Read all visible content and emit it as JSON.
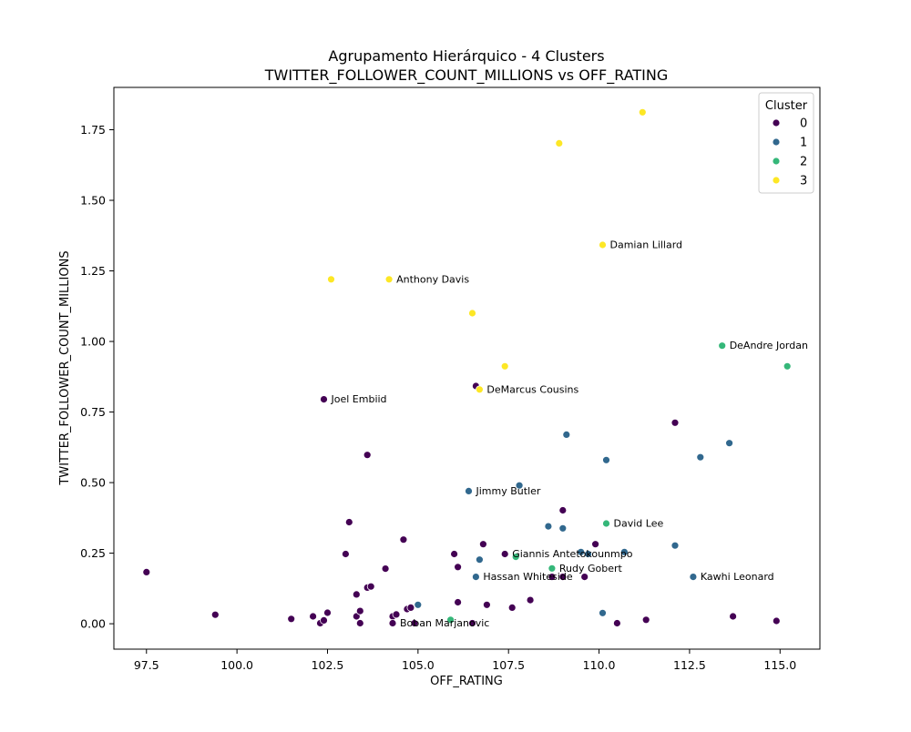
{
  "chart_data": {
    "type": "scatter",
    "title": "Agrupamento Hierárquico - 4 Clusters",
    "subtitle": "TWITTER_FOLLOWER_COUNT_MILLIONS vs OFF_RATING",
    "xlabel": "OFF_RATING",
    "ylabel": "TWITTER_FOLLOWER_COUNT_MILLIONS",
    "xlim": [
      96.6,
      116.1
    ],
    "ylim": [
      -0.09,
      1.9
    ],
    "xticks": [
      "97.5",
      "100.0",
      "102.5",
      "105.0",
      "107.5",
      "110.0",
      "112.5",
      "115.0"
    ],
    "yticks": [
      "0.00",
      "0.25",
      "0.50",
      "0.75",
      "1.00",
      "1.25",
      "1.50",
      "1.75"
    ],
    "grid": false,
    "legend": {
      "title": "Cluster",
      "placement": "top-right"
    },
    "colors": {
      "0": "#440154",
      "1": "#31688e",
      "2": "#35b779",
      "3": "#fde725"
    },
    "series": [
      {
        "name": "0",
        "points": [
          [
            97.5,
            0.183
          ],
          [
            99.4,
            0.032
          ],
          [
            101.5,
            0.017
          ],
          [
            102.1,
            0.026
          ],
          [
            102.3,
            0.002
          ],
          [
            102.4,
            0.012
          ],
          [
            102.5,
            0.039
          ],
          [
            102.4,
            0.795
          ],
          [
            103.0,
            0.247
          ],
          [
            103.1,
            0.36
          ],
          [
            103.3,
            0.104
          ],
          [
            103.3,
            0.026
          ],
          [
            103.4,
            0.045
          ],
          [
            103.4,
            0.002
          ],
          [
            103.6,
            0.128
          ],
          [
            103.7,
            0.132
          ],
          [
            103.6,
            0.598
          ],
          [
            104.1,
            0.195
          ],
          [
            104.3,
            0.026
          ],
          [
            104.3,
            0.002
          ],
          [
            104.4,
            0.033
          ],
          [
            104.6,
            0.298
          ],
          [
            104.7,
            0.052
          ],
          [
            104.8,
            0.057
          ],
          [
            104.9,
            0.002
          ],
          [
            106.0,
            0.247
          ],
          [
            106.1,
            0.201
          ],
          [
            106.1,
            0.076
          ],
          [
            106.5,
            0.002
          ],
          [
            106.6,
            0.842
          ],
          [
            106.8,
            0.282
          ],
          [
            106.9,
            0.067
          ],
          [
            107.4,
            0.247
          ],
          [
            107.6,
            0.057
          ],
          [
            108.1,
            0.084
          ],
          [
            108.7,
            0.166
          ],
          [
            109.0,
            0.402
          ],
          [
            109.0,
            0.166
          ],
          [
            109.6,
            0.166
          ],
          [
            109.9,
            0.282
          ],
          [
            110.5,
            0.002
          ],
          [
            111.3,
            0.014
          ],
          [
            112.1,
            0.712
          ],
          [
            113.7,
            0.026
          ],
          [
            114.9,
            0.01
          ]
        ]
      },
      {
        "name": "1",
        "points": [
          [
            105.0,
            0.067
          ],
          [
            106.4,
            0.47
          ],
          [
            106.6,
            0.166
          ],
          [
            106.7,
            0.227
          ],
          [
            107.8,
            0.49
          ],
          [
            108.6,
            0.345
          ],
          [
            109.0,
            0.338
          ],
          [
            109.1,
            0.67
          ],
          [
            109.5,
            0.254
          ],
          [
            109.7,
            0.247
          ],
          [
            110.1,
            0.038
          ],
          [
            110.2,
            0.58
          ],
          [
            110.7,
            0.254
          ],
          [
            112.1,
            0.277
          ],
          [
            112.6,
            0.166
          ],
          [
            112.8,
            0.59
          ],
          [
            113.6,
            0.64
          ]
        ]
      },
      {
        "name": "2",
        "points": [
          [
            105.9,
            0.014
          ],
          [
            107.7,
            0.237
          ],
          [
            108.7,
            0.196
          ],
          [
            110.2,
            0.355
          ],
          [
            113.4,
            0.985
          ],
          [
            115.2,
            0.912
          ]
        ]
      },
      {
        "name": "3",
        "points": [
          [
            102.6,
            1.22
          ],
          [
            104.2,
            1.22
          ],
          [
            106.5,
            1.1
          ],
          [
            106.7,
            0.83
          ],
          [
            107.4,
            0.912
          ],
          [
            108.9,
            1.702
          ],
          [
            110.1,
            1.342
          ],
          [
            111.2,
            1.812
          ]
        ]
      }
    ],
    "annotations": [
      {
        "text": "Damian Lillard",
        "x": 110.1,
        "y": 1.342
      },
      {
        "text": "Anthony Davis",
        "x": 104.2,
        "y": 1.22
      },
      {
        "text": "DeAndre Jordan",
        "x": 113.4,
        "y": 0.985
      },
      {
        "text": "DeMarcus Cousins",
        "x": 106.7,
        "y": 0.83
      },
      {
        "text": "Joel Embiid",
        "x": 102.4,
        "y": 0.795
      },
      {
        "text": "Jimmy Butler",
        "x": 106.4,
        "y": 0.47
      },
      {
        "text": "David Lee",
        "x": 110.2,
        "y": 0.355
      },
      {
        "text": "Giannis Antetokounmpo",
        "x": 107.4,
        "y": 0.247
      },
      {
        "text": "Rudy Gobert",
        "x": 108.7,
        "y": 0.196
      },
      {
        "text": "Hassan Whiteside",
        "x": 106.6,
        "y": 0.166
      },
      {
        "text": "Kawhi Leonard",
        "x": 112.6,
        "y": 0.166
      },
      {
        "text": "Boban Marjanovic",
        "x": 104.3,
        "y": 0.002
      }
    ]
  }
}
